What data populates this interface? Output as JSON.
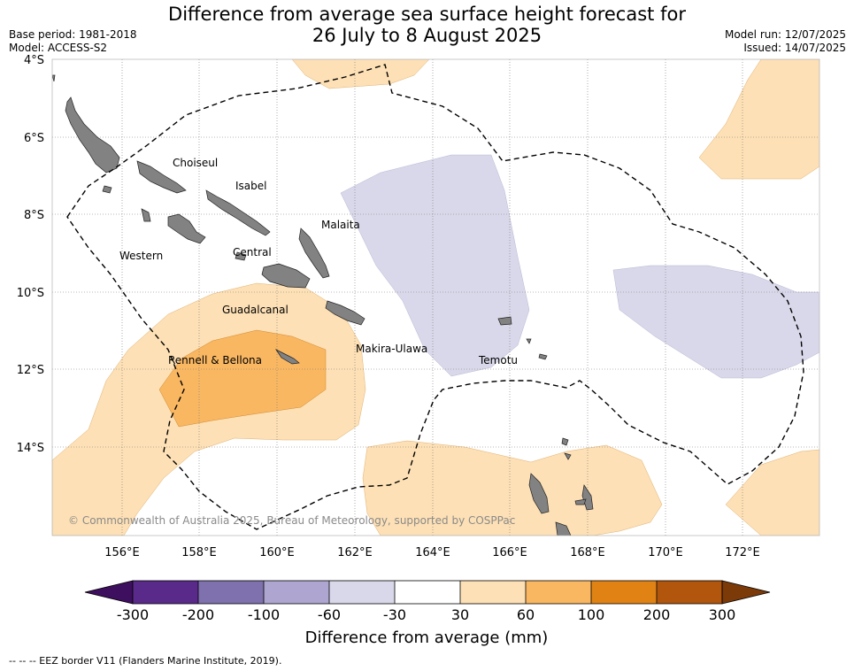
{
  "title_line1": "Difference from average sea surface height forecast for",
  "title_line2": "26 July to 8 August 2025",
  "meta_left": [
    "Base period: 1981-2018",
    "Model: ACCESS-S2"
  ],
  "meta_right": [
    "Model run: 12/07/2025",
    "Issued: 14/07/2025"
  ],
  "lat_labels": [
    "4°S",
    "6°S",
    "8°S",
    "10°S",
    "12°S",
    "14°S"
  ],
  "lon_labels": [
    "156°E",
    "158°E",
    "160°E",
    "162°E",
    "164°E",
    "166°E",
    "168°E",
    "170°E",
    "172°E"
  ],
  "regions": [
    "Choiseul",
    "Isabel",
    "Malaita",
    "Western",
    "Central",
    "Guadalcanal",
    "Makira-Ulawa",
    "Rennell & Bellona",
    "Temotu"
  ],
  "copyright": "© Commonwealth of Australia 2025, Bureau of Meteorology, supported by COSPPac",
  "colorbar": {
    "title": "Difference from average (mm)",
    "ticks": [
      "-300",
      "-200",
      "-100",
      "-60",
      "-30",
      "30",
      "60",
      "100",
      "200",
      "300"
    ],
    "colors": [
      "#3f0f5f",
      "#5a2a8a",
      "#7f71ad",
      "#aea6d0",
      "#d8d8ea",
      "#ffffff",
      "#fde0b5",
      "#f9b762",
      "#e08314",
      "#b1560c",
      "#7b3a08"
    ]
  },
  "legend_footer": "--  --  -- EEZ border V11 (Flanders Marine Institute, 2019).",
  "colors": {
    "land": "#828282",
    "positive_light": "#fde0b5",
    "positive_medium": "#f9b762",
    "negative_light": "#d8d8ea"
  }
}
